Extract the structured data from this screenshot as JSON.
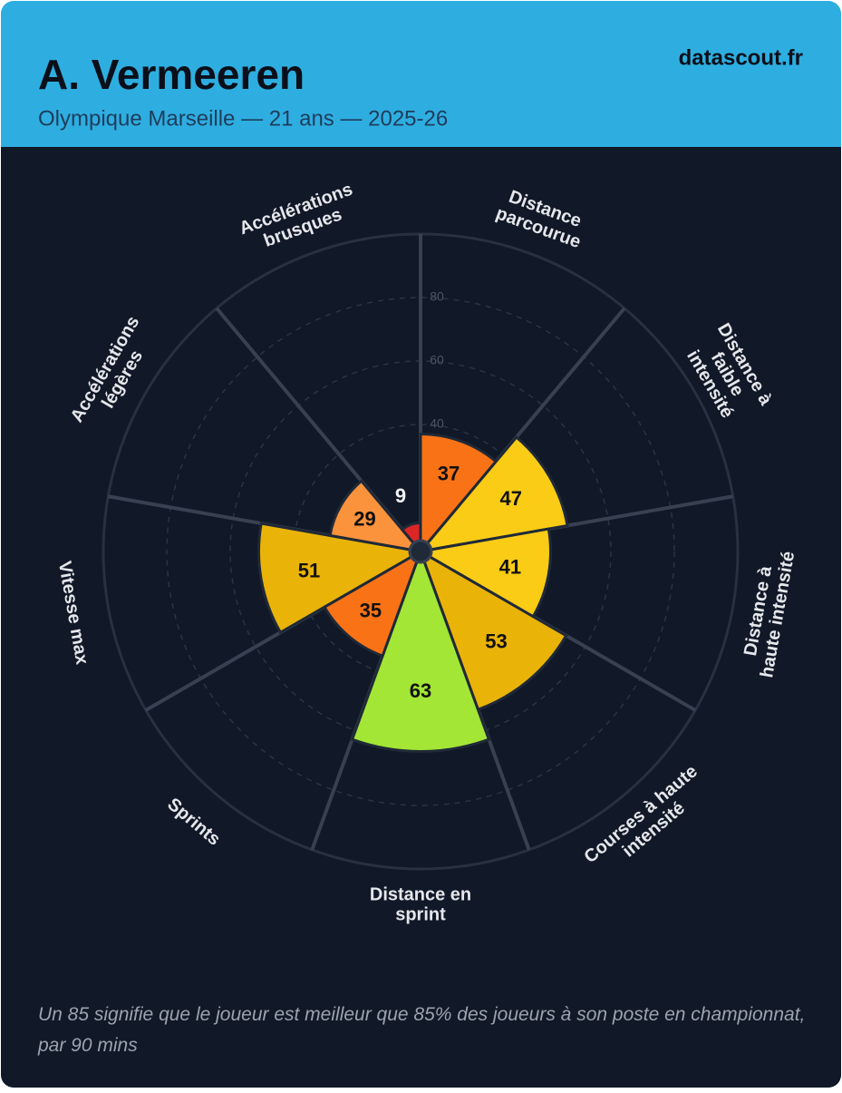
{
  "chart_data": {
    "type": "polar_bar",
    "title": "A. Vermeeren",
    "subtitle": "Olympique Marseille — 21 ans — 2025-26",
    "source": "datascout.fr",
    "footnote": "Un 85 signifie que le joueur est meilleur que 85% des joueurs à son poste en championnat, par 90 mins",
    "categories": [
      [
        "Distance",
        "parcourue"
      ],
      [
        "Distance à",
        "faible",
        "intensité"
      ],
      [
        "Distance à",
        "haute intensité"
      ],
      [
        "Courses à haute",
        "intensité"
      ],
      [
        "Distance en",
        "sprint"
      ],
      [
        "Sprints"
      ],
      [
        "Vitesse max"
      ],
      [
        "Accélérations",
        "légères"
      ],
      [
        "Accélérations",
        "brusques"
      ]
    ],
    "values": [
      37,
      47,
      41,
      53,
      63,
      35,
      51,
      29,
      9
    ],
    "colors": [
      "#f97316",
      "#facc15",
      "#facc15",
      "#eab308",
      "#a3e635",
      "#f97316",
      "#eab308",
      "#fb923c",
      "#dc2626"
    ],
    "ylim": [
      0,
      100
    ],
    "yticks": [
      40,
      60,
      80
    ],
    "grid": true
  }
}
